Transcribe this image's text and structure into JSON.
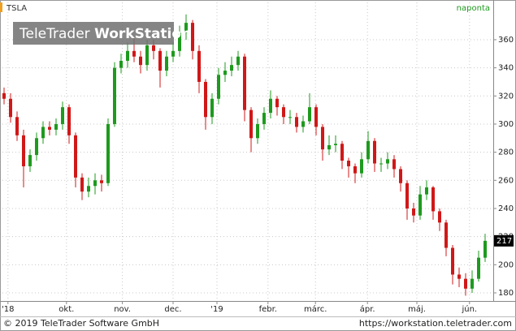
{
  "chart_data": {
    "type": "candlestick",
    "title": "TSLA",
    "interval": "naponta",
    "watermark": [
      "TeleTrader",
      "WorkStation"
    ],
    "footer_left": "© 2019 TeleTrader Software GmbH",
    "footer_right": "https://workstation.teletrader.com",
    "up_color": "#1e9a1e",
    "down_color": "#d01818",
    "grid": true,
    "ylim": [
      174.8,
      386.5
    ],
    "yticks": [
      180,
      200,
      220,
      240,
      260,
      280,
      300,
      320,
      340,
      360
    ],
    "xlim": [
      -0.25,
      75.25
    ],
    "xticks": [
      {
        "value": 0.6,
        "label": "'18"
      },
      {
        "value": 9.6,
        "label": "okt."
      },
      {
        "value": 18.2,
        "label": "nov."
      },
      {
        "value": 26,
        "label": "dec."
      },
      {
        "value": 32.75,
        "label": "'19"
      },
      {
        "value": 40.6,
        "label": "febr."
      },
      {
        "value": 47.9,
        "label": "márc."
      },
      {
        "value": 55.9,
        "label": "ápr."
      },
      {
        "value": 63.5,
        "label": "máj."
      },
      {
        "value": 71.6,
        "label": "jún."
      }
    ],
    "open": [
      322,
      318,
      305,
      292,
      270,
      278,
      290,
      298,
      296,
      300,
      312,
      292,
      262,
      252,
      256,
      260,
      258,
      300,
      340,
      345,
      352,
      348,
      342,
      356,
      352,
      338,
      348,
      352,
      365,
      372,
      352,
      330,
      305,
      318,
      335,
      338,
      342,
      348,
      310,
      290,
      300,
      308,
      318,
      312,
      305,
      305,
      298,
      302,
      312,
      298,
      282,
      285,
      286,
      274,
      270,
      265,
      275,
      288,
      272,
      272,
      275,
      268,
      258,
      240,
      235,
      250,
      255,
      238,
      230,
      212,
      193,
      190,
      183,
      190,
      205
    ],
    "high": [
      326,
      322,
      309,
      296,
      282,
      294,
      302,
      302,
      304,
      316,
      314,
      294,
      265,
      262,
      265,
      264,
      304,
      344,
      350,
      358,
      362,
      352,
      360,
      360,
      354,
      352,
      358,
      370,
      378,
      374,
      356,
      332,
      322,
      340,
      344,
      348,
      352,
      350,
      312,
      304,
      312,
      324,
      320,
      314,
      310,
      308,
      306,
      322,
      314,
      300,
      292,
      292,
      288,
      276,
      272,
      280,
      295,
      290,
      276,
      280,
      278,
      270,
      260,
      244,
      256,
      260,
      256,
      240,
      232,
      214,
      198,
      194,
      196,
      210,
      222
    ],
    "low": [
      314,
      301,
      288,
      255,
      266,
      274,
      286,
      292,
      292,
      296,
      286,
      255,
      246,
      248,
      250,
      252,
      256,
      298,
      336,
      340,
      344,
      336,
      338,
      346,
      326,
      334,
      344,
      348,
      360,
      346,
      322,
      296,
      300,
      314,
      330,
      334,
      338,
      302,
      280,
      286,
      296,
      304,
      306,
      300,
      300,
      294,
      294,
      300,
      292,
      274,
      278,
      280,
      268,
      262,
      258,
      262,
      272,
      266,
      266,
      268,
      262,
      252,
      232,
      230,
      232,
      246,
      232,
      224,
      206,
      186,
      184,
      178,
      180,
      188,
      202
    ],
    "close": [
      318,
      305,
      292,
      270,
      278,
      290,
      298,
      296,
      300,
      312,
      292,
      262,
      252,
      256,
      260,
      258,
      300,
      340,
      345,
      352,
      348,
      342,
      356,
      352,
      338,
      348,
      352,
      365,
      372,
      352,
      330,
      305,
      318,
      335,
      338,
      342,
      348,
      310,
      290,
      300,
      308,
      318,
      312,
      305,
      305,
      298,
      302,
      312,
      298,
      282,
      285,
      286,
      274,
      270,
      265,
      275,
      288,
      272,
      272,
      275,
      268,
      258,
      240,
      235,
      250,
      255,
      238,
      230,
      212,
      193,
      190,
      183,
      190,
      205,
      217
    ]
  }
}
